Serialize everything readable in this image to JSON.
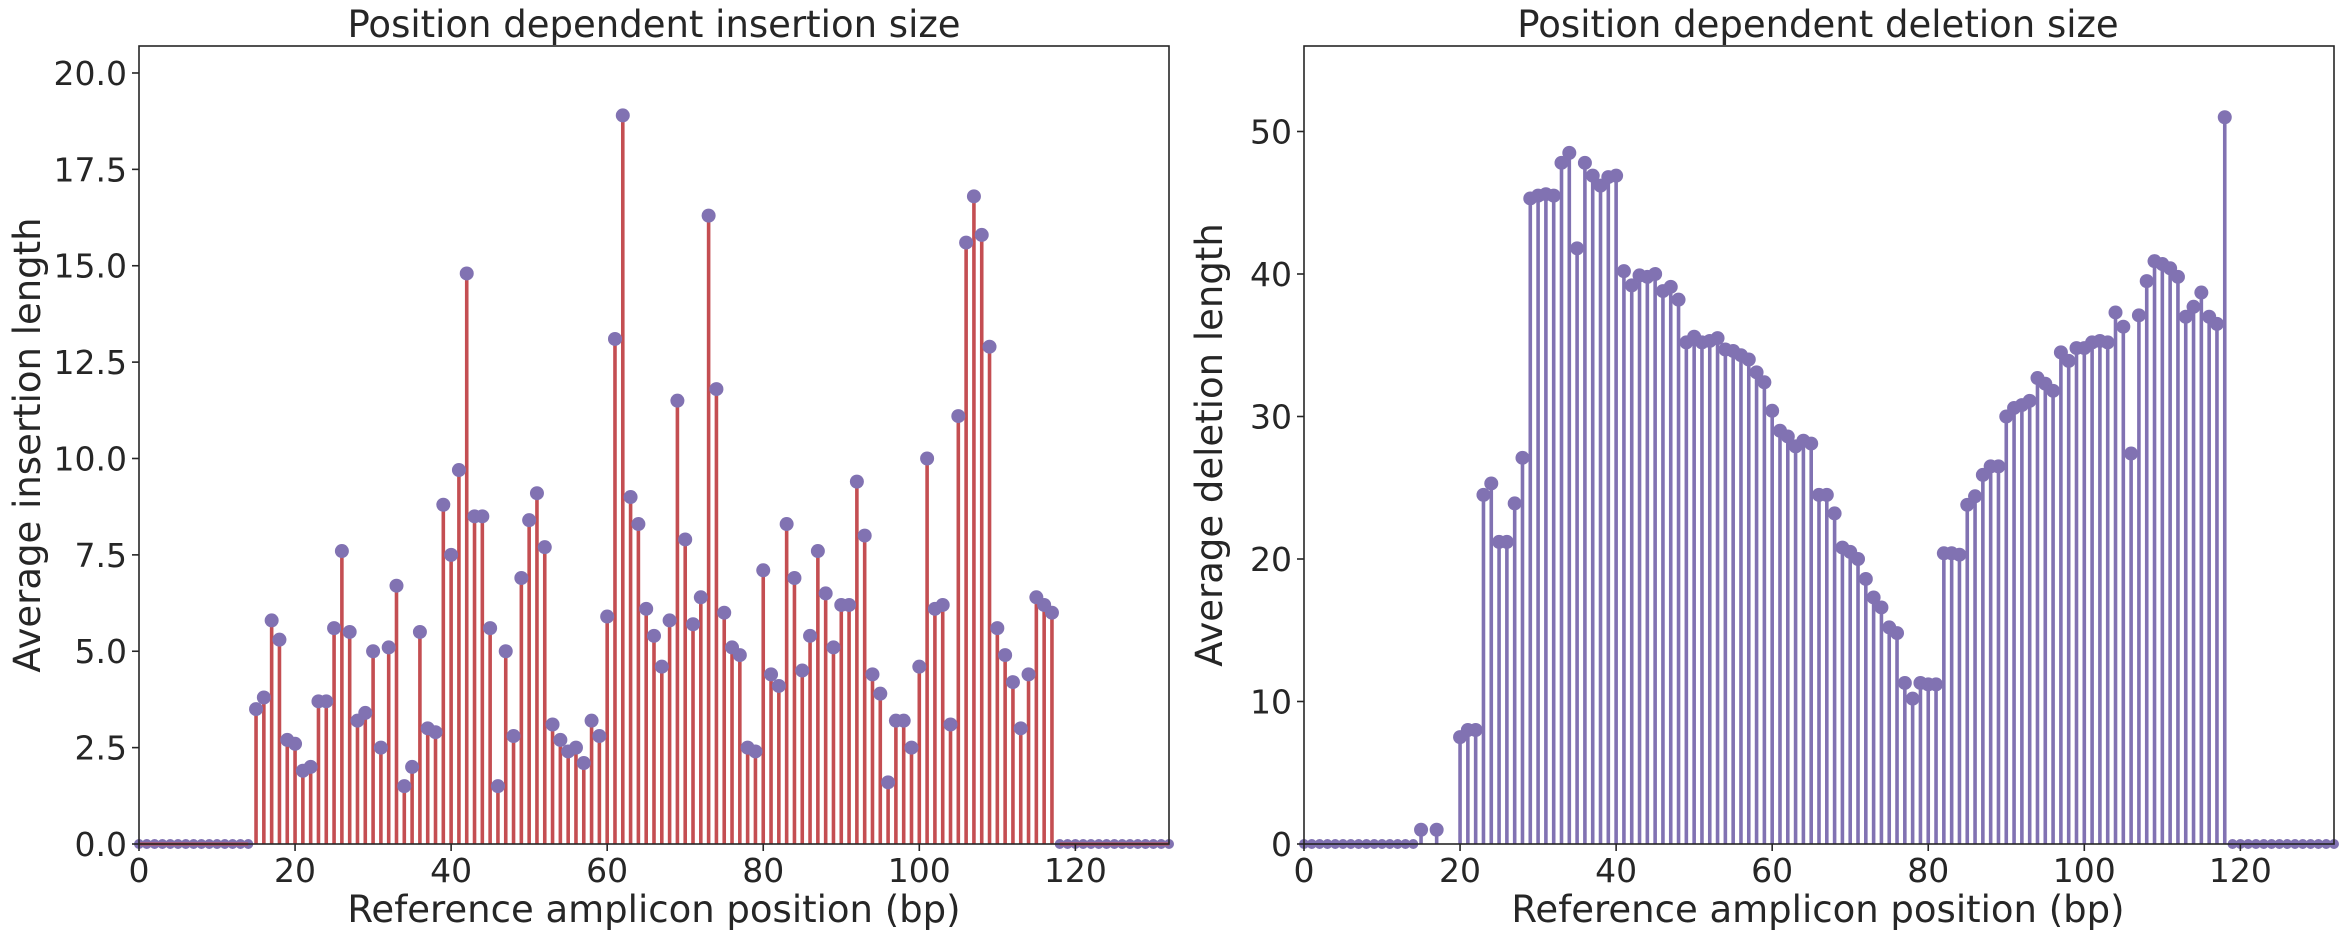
{
  "chart_data": [
    {
      "type": "stem",
      "title": "Position dependent insertion size",
      "xlabel": "Reference amplicon position (bp)",
      "ylabel": "Average insertion length",
      "xlim": [
        0,
        132
      ],
      "ylim": [
        0,
        20.7
      ],
      "xticks": [
        0,
        20,
        40,
        60,
        80,
        100,
        120
      ],
      "xtick_labels": [
        "0",
        "20",
        "40",
        "60",
        "80",
        "100",
        "120"
      ],
      "yticks": [
        0,
        2.5,
        5,
        7.5,
        10,
        12.5,
        15,
        17.5,
        20
      ],
      "ytick_labels": [
        "0.0",
        "2.5",
        "5.0",
        "7.5",
        "10.0",
        "12.5",
        "15.0",
        "17.5",
        "20.0"
      ],
      "grid": false,
      "stem_color": "#c44e52",
      "marker_color": "#8172b2",
      "series": [
        {
          "x": [
            15,
            16,
            17,
            18,
            19,
            20,
            21,
            22,
            23,
            24,
            25,
            26,
            27,
            28,
            29,
            30,
            31,
            32,
            33,
            34,
            35,
            36,
            37,
            38,
            39,
            40,
            41,
            42,
            43,
            44,
            45,
            46,
            47,
            48,
            49,
            50,
            51,
            52,
            53,
            54,
            55,
            56,
            57,
            58,
            59,
            60,
            61,
            62,
            63,
            64,
            65,
            66,
            67,
            68,
            69,
            70,
            71,
            72,
            73,
            74,
            75,
            76,
            77,
            78,
            79,
            80,
            81,
            82,
            83,
            84,
            85,
            86,
            87,
            88,
            89,
            90,
            91,
            92,
            93,
            94,
            95,
            96,
            97,
            98,
            99,
            100,
            101,
            102,
            103,
            104,
            105,
            106,
            107,
            108,
            109,
            110,
            111,
            112,
            113,
            114,
            115,
            116,
            117
          ],
          "y": [
            3.5,
            3.8,
            5.8,
            5.3,
            2.7,
            2.6,
            1.9,
            2.0,
            3.7,
            3.7,
            5.6,
            7.6,
            5.5,
            3.2,
            3.4,
            5.0,
            2.5,
            5.1,
            6.7,
            1.5,
            2.0,
            5.5,
            3.0,
            2.9,
            8.8,
            7.5,
            9.7,
            14.8,
            8.5,
            8.5,
            5.6,
            1.5,
            5.0,
            2.8,
            6.9,
            8.4,
            9.1,
            7.7,
            3.1,
            2.7,
            2.4,
            2.5,
            2.1,
            3.2,
            2.8,
            5.9,
            13.1,
            18.9,
            9.0,
            8.3,
            6.1,
            5.4,
            4.6,
            5.8,
            11.5,
            7.9,
            5.7,
            6.4,
            16.3,
            11.8,
            6.0,
            5.1,
            4.9,
            2.5,
            2.4,
            7.1,
            4.4,
            4.1,
            8.3,
            6.9,
            4.5,
            5.4,
            7.6,
            6.5,
            5.1,
            6.2,
            6.2,
            9.4,
            8.0,
            4.4,
            3.9,
            1.6,
            3.2,
            3.2,
            2.5,
            4.6,
            10.0,
            6.1,
            6.2,
            3.1,
            11.1,
            15.6,
            16.8,
            15.8,
            12.9,
            5.6,
            4.9,
            4.2,
            3.0,
            4.4,
            6.4,
            6.2,
            6.0
          ]
        }
      ],
      "zero_marker_color": "#8172b2",
      "zero_positions": [
        [
          0,
          14
        ],
        [
          118,
          132
        ]
      ]
    },
    {
      "type": "stem",
      "title": "Position dependent deletion size",
      "xlabel": "Reference amplicon position (bp)",
      "ylabel": "Average deletion length",
      "xlim": [
        0,
        132
      ],
      "ylim": [
        0,
        56
      ],
      "xticks": [
        0,
        20,
        40,
        60,
        80,
        100,
        120
      ],
      "xtick_labels": [
        "0",
        "20",
        "40",
        "60",
        "80",
        "100",
        "120"
      ],
      "yticks": [
        0,
        10,
        20,
        30,
        40,
        50
      ],
      "ytick_labels": [
        "0",
        "10",
        "20",
        "30",
        "40",
        "50"
      ],
      "grid": false,
      "stem_color": "#8172b2",
      "marker_color": "#8172b2",
      "series": [
        {
          "x": [
            15,
            17,
            20,
            21,
            22,
            23,
            24,
            25,
            26,
            27,
            28,
            29,
            30,
            31,
            32,
            33,
            34,
            35,
            36,
            37,
            38,
            39,
            40,
            41,
            42,
            43,
            44,
            45,
            46,
            47,
            48,
            49,
            50,
            51,
            52,
            53,
            54,
            55,
            56,
            57,
            58,
            59,
            60,
            61,
            62,
            63,
            64,
            65,
            66,
            67,
            68,
            69,
            70,
            71,
            72,
            73,
            74,
            75,
            76,
            77,
            78,
            79,
            80,
            81,
            82,
            83,
            84,
            85,
            86,
            87,
            88,
            89,
            90,
            91,
            92,
            93,
            94,
            95,
            96,
            97,
            98,
            99,
            100,
            101,
            102,
            103,
            104,
            105,
            106,
            107,
            108,
            109,
            110,
            111,
            112,
            113,
            114,
            115,
            116,
            117,
            118
          ],
          "y": [
            1.0,
            1.0,
            7.5,
            8.0,
            8.0,
            24.5,
            25.3,
            21.2,
            21.2,
            23.9,
            27.1,
            45.3,
            45.5,
            45.6,
            45.5,
            47.8,
            48.5,
            41.8,
            47.8,
            46.9,
            46.2,
            46.8,
            46.9,
            40.2,
            39.2,
            39.9,
            39.8,
            40.0,
            38.8,
            39.1,
            38.2,
            35.2,
            35.6,
            35.2,
            35.3,
            35.5,
            34.7,
            34.6,
            34.3,
            34.0,
            33.1,
            32.4,
            30.4,
            29.0,
            28.6,
            27.9,
            28.3,
            28.1,
            24.5,
            24.5,
            23.2,
            20.8,
            20.5,
            20.0,
            18.6,
            17.3,
            16.6,
            15.2,
            14.8,
            11.3,
            10.2,
            11.3,
            11.2,
            11.2,
            20.4,
            20.4,
            20.3,
            23.8,
            24.4,
            25.9,
            26.5,
            26.5,
            30.0,
            30.6,
            30.8,
            31.1,
            32.7,
            32.3,
            31.8,
            34.5,
            33.9,
            34.8,
            34.8,
            35.2,
            35.3,
            35.2,
            37.3,
            36.3,
            27.4,
            37.1,
            39.5,
            40.9,
            40.7,
            40.4,
            39.8,
            37.0,
            37.7,
            38.7,
            37.0,
            36.5,
            51.0
          ]
        }
      ],
      "zero_marker_color": "#8172b2",
      "zero_positions": [
        [
          0,
          14
        ],
        [
          119,
          132
        ]
      ]
    }
  ]
}
